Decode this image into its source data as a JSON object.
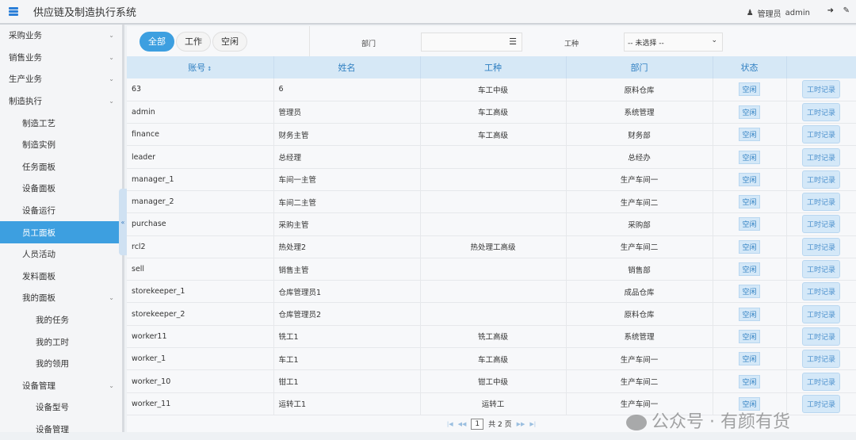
{
  "app": {
    "title": "供应链及制造执行系统",
    "user_role": "管理员",
    "username": "admin"
  },
  "sidebar": {
    "items": [
      {
        "label": "采购业务",
        "level": 0,
        "chevron": true
      },
      {
        "label": "销售业务",
        "level": 0,
        "chevron": true
      },
      {
        "label": "生产业务",
        "level": 0,
        "chevron": true
      },
      {
        "label": "制造执行",
        "level": 0,
        "chevron": true
      },
      {
        "label": "制造工艺",
        "level": 1
      },
      {
        "label": "制造实例",
        "level": 1
      },
      {
        "label": "任务面板",
        "level": 1
      },
      {
        "label": "设备面板",
        "level": 1
      },
      {
        "label": "设备运行",
        "level": 1
      },
      {
        "label": "员工面板",
        "level": 1,
        "active": true
      },
      {
        "label": "人员活动",
        "level": 1
      },
      {
        "label": "发料面板",
        "level": 1
      },
      {
        "label": "我的面板",
        "level": 1,
        "chevron": true
      },
      {
        "label": "我的任务",
        "level": 2
      },
      {
        "label": "我的工时",
        "level": 2
      },
      {
        "label": "我的领用",
        "level": 2
      },
      {
        "label": "设备管理",
        "level": 1,
        "chevron": true
      },
      {
        "label": "设备型号",
        "level": 2
      },
      {
        "label": "设备管理",
        "level": 2
      }
    ]
  },
  "filters": {
    "tabs": [
      "全部",
      "工作",
      "空闲"
    ],
    "active_tab": "全部",
    "dept_label": "部门",
    "dept_value": "",
    "worktype_label": "工种",
    "worktype_value": "-- 未选择 --"
  },
  "table": {
    "headers": [
      "账号",
      "姓名",
      "工种",
      "部门",
      "状态",
      ""
    ],
    "rows": [
      [
        "63",
        "6",
        "车工中级",
        "原料仓库",
        "空闲",
        "工时记录"
      ],
      [
        "admin",
        "管理员",
        "车工高级",
        "系统管理",
        "空闲",
        "工时记录"
      ],
      [
        "finance",
        "财务主管",
        "车工高级",
        "财务部",
        "空闲",
        "工时记录"
      ],
      [
        "leader",
        "总经理",
        "",
        "总经办",
        "空闲",
        "工时记录"
      ],
      [
        "manager_1",
        "车间一主管",
        "",
        "生产车间一",
        "空闲",
        "工时记录"
      ],
      [
        "manager_2",
        "车间二主管",
        "",
        "生产车间二",
        "空闲",
        "工时记录"
      ],
      [
        "purchase",
        "采购主管",
        "",
        "采购部",
        "空闲",
        "工时记录"
      ],
      [
        "rcl2",
        "热处理2",
        "热处理工高级",
        "生产车间二",
        "空闲",
        "工时记录"
      ],
      [
        "sell",
        "销售主管",
        "",
        "销售部",
        "空闲",
        "工时记录"
      ],
      [
        "storekeeper_1",
        "仓库管理员1",
        "",
        "成品仓库",
        "空闲",
        "工时记录"
      ],
      [
        "storekeeper_2",
        "仓库管理员2",
        "",
        "原料仓库",
        "空闲",
        "工时记录"
      ],
      [
        "worker11",
        "铣工1",
        "铣工高级",
        "系统管理",
        "空闲",
        "工时记录"
      ],
      [
        "worker_1",
        "车工1",
        "车工高级",
        "生产车间一",
        "空闲",
        "工时记录"
      ],
      [
        "worker_10",
        "钳工1",
        "钳工中级",
        "生产车间二",
        "空闲",
        "工时记录"
      ],
      [
        "worker_11",
        "运转工1",
        "运转工",
        "生产车间一",
        "空闲",
        "工时记录"
      ]
    ]
  },
  "pager": {
    "page": "1",
    "total_text": "共 2 页"
  },
  "watermark": "公众号 · 有颜有货"
}
